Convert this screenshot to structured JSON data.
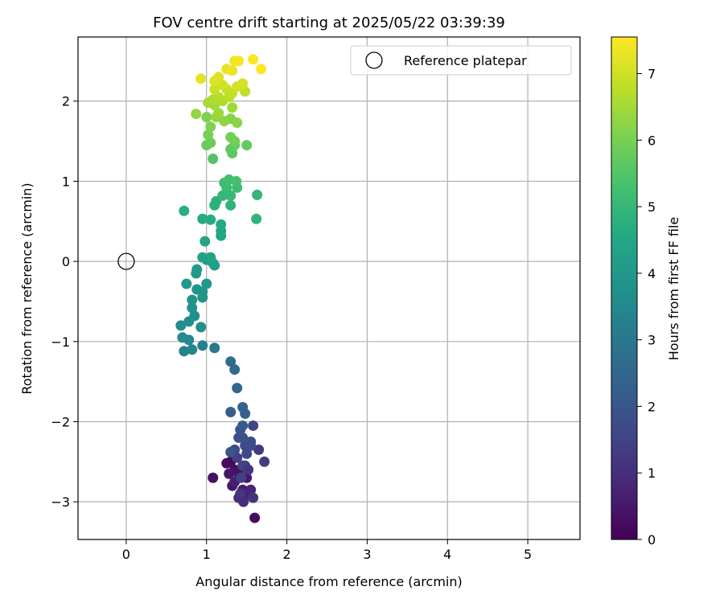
{
  "chart_data": {
    "type": "scatter",
    "title": "FOV centre drift starting at 2025/05/22 03:39:39",
    "xlabel": "Angular distance from reference (arcmin)",
    "ylabel": "Rotation from reference (arcmin)",
    "xlim": [
      -0.6,
      5.65
    ],
    "ylim": [
      -3.47,
      2.8
    ],
    "xticks": [
      0,
      1,
      2,
      3,
      4,
      5
    ],
    "yticks": [
      -3,
      -2,
      -1,
      0,
      1,
      2
    ],
    "grid": true,
    "legend": {
      "position": "top-right",
      "entries": [
        "Reference platepar"
      ]
    },
    "reference_point": {
      "x": 0,
      "y": 0,
      "marker": "open-circle",
      "color": "#000000"
    },
    "colorbar": {
      "label": "Hours from first FF file",
      "range": [
        0,
        7.55
      ],
      "ticks": [
        0,
        1,
        2,
        3,
        4,
        5,
        6,
        7
      ],
      "colormap": "viridis"
    },
    "points": [
      {
        "x": 1.3,
        "y": -2.5,
        "h": 0.1
      },
      {
        "x": 1.25,
        "y": -2.52,
        "h": 0.2
      },
      {
        "x": 1.35,
        "y": -2.6,
        "h": 0.3
      },
      {
        "x": 1.4,
        "y": -2.65,
        "h": 0.4
      },
      {
        "x": 1.32,
        "y": -2.8,
        "h": 0.5
      },
      {
        "x": 1.45,
        "y": -2.85,
        "h": 0.6
      },
      {
        "x": 1.5,
        "y": -2.9,
        "h": 0.7
      },
      {
        "x": 1.55,
        "y": -2.85,
        "h": 0.8
      },
      {
        "x": 1.4,
        "y": -2.95,
        "h": 0.9
      },
      {
        "x": 1.46,
        "y": -3.0,
        "h": 1.0
      },
      {
        "x": 1.6,
        "y": -3.2,
        "h": 0.25
      },
      {
        "x": 1.08,
        "y": -2.7,
        "h": 0.35
      },
      {
        "x": 1.28,
        "y": -2.65,
        "h": 0.45
      },
      {
        "x": 1.5,
        "y": -2.7,
        "h": 0.55
      },
      {
        "x": 1.35,
        "y": -2.75,
        "h": 0.65
      },
      {
        "x": 1.58,
        "y": -2.95,
        "h": 1.1
      },
      {
        "x": 1.42,
        "y": -2.9,
        "h": 1.2
      },
      {
        "x": 1.48,
        "y": -2.55,
        "h": 1.3
      },
      {
        "x": 1.38,
        "y": -2.45,
        "h": 1.4
      },
      {
        "x": 1.65,
        "y": -2.35,
        "h": 1.25
      },
      {
        "x": 1.72,
        "y": -2.5,
        "h": 1.35
      },
      {
        "x": 1.45,
        "y": -2.55,
        "h": 1.5
      },
      {
        "x": 1.52,
        "y": -2.6,
        "h": 1.15
      },
      {
        "x": 1.43,
        "y": -2.7,
        "h": 1.45
      },
      {
        "x": 1.35,
        "y": -2.35,
        "h": 1.6
      },
      {
        "x": 1.48,
        "y": -2.3,
        "h": 1.7
      },
      {
        "x": 1.55,
        "y": -2.25,
        "h": 1.8
      },
      {
        "x": 1.4,
        "y": -2.2,
        "h": 1.9
      },
      {
        "x": 1.5,
        "y": -2.4,
        "h": 1.65
      },
      {
        "x": 1.42,
        "y": -2.1,
        "h": 2.0
      },
      {
        "x": 1.55,
        "y": -2.3,
        "h": 1.75
      },
      {
        "x": 1.45,
        "y": -2.2,
        "h": 1.85
      },
      {
        "x": 1.3,
        "y": -2.38,
        "h": 1.95
      },
      {
        "x": 1.45,
        "y": -2.05,
        "h": 2.1
      },
      {
        "x": 1.58,
        "y": -2.05,
        "h": 1.55
      },
      {
        "x": 1.3,
        "y": -1.88,
        "h": 2.2
      },
      {
        "x": 1.45,
        "y": -1.82,
        "h": 2.3
      },
      {
        "x": 1.48,
        "y": -1.9,
        "h": 2.4
      },
      {
        "x": 1.38,
        "y": -1.58,
        "h": 2.5
      },
      {
        "x": 1.35,
        "y": -1.35,
        "h": 2.6
      },
      {
        "x": 1.3,
        "y": -1.25,
        "h": 2.7
      },
      {
        "x": 1.1,
        "y": -1.08,
        "h": 3.0
      },
      {
        "x": 0.95,
        "y": -1.05,
        "h": 3.2
      },
      {
        "x": 0.72,
        "y": -1.12,
        "h": 3.3
      },
      {
        "x": 0.82,
        "y": -1.1,
        "h": 3.4
      },
      {
        "x": 0.78,
        "y": -0.98,
        "h": 3.5
      },
      {
        "x": 0.7,
        "y": -0.95,
        "h": 3.55
      },
      {
        "x": 0.68,
        "y": -0.8,
        "h": 3.6
      },
      {
        "x": 0.78,
        "y": -0.75,
        "h": 3.65
      },
      {
        "x": 0.93,
        "y": -0.82,
        "h": 3.7
      },
      {
        "x": 0.85,
        "y": -0.68,
        "h": 3.75
      },
      {
        "x": 0.82,
        "y": -0.58,
        "h": 3.8
      },
      {
        "x": 0.82,
        "y": -0.48,
        "h": 3.85
      },
      {
        "x": 0.95,
        "y": -0.45,
        "h": 3.9
      },
      {
        "x": 0.95,
        "y": -0.38,
        "h": 3.92
      },
      {
        "x": 0.88,
        "y": -0.35,
        "h": 3.95
      },
      {
        "x": 0.75,
        "y": -0.28,
        "h": 4.0
      },
      {
        "x": 1.0,
        "y": -0.28,
        "h": 4.02
      },
      {
        "x": 0.87,
        "y": -0.15,
        "h": 4.05
      },
      {
        "x": 0.88,
        "y": -0.1,
        "h": 4.1
      },
      {
        "x": 1.0,
        "y": 0.02,
        "h": 4.15
      },
      {
        "x": 1.08,
        "y": -0.02,
        "h": 4.2
      },
      {
        "x": 1.1,
        "y": -0.05,
        "h": 4.25
      },
      {
        "x": 0.95,
        "y": 0.05,
        "h": 4.3
      },
      {
        "x": 1.05,
        "y": 0.05,
        "h": 4.35
      },
      {
        "x": 0.98,
        "y": 0.25,
        "h": 4.4
      },
      {
        "x": 1.18,
        "y": 0.32,
        "h": 4.45
      },
      {
        "x": 1.18,
        "y": 0.38,
        "h": 4.5
      },
      {
        "x": 1.18,
        "y": 0.46,
        "h": 4.55
      },
      {
        "x": 0.95,
        "y": 0.53,
        "h": 4.6
      },
      {
        "x": 1.05,
        "y": 0.52,
        "h": 4.65
      },
      {
        "x": 0.72,
        "y": 0.63,
        "h": 4.7
      },
      {
        "x": 1.1,
        "y": 0.7,
        "h": 4.75
      },
      {
        "x": 1.12,
        "y": 0.75,
        "h": 4.8
      },
      {
        "x": 1.3,
        "y": 0.7,
        "h": 4.85
      },
      {
        "x": 1.62,
        "y": 0.53,
        "h": 4.9
      },
      {
        "x": 1.63,
        "y": 0.83,
        "h": 4.95
      },
      {
        "x": 1.2,
        "y": 0.82,
        "h": 5.0
      },
      {
        "x": 1.3,
        "y": 0.82,
        "h": 5.05
      },
      {
        "x": 1.25,
        "y": 0.92,
        "h": 5.1
      },
      {
        "x": 1.22,
        "y": 0.98,
        "h": 5.15
      },
      {
        "x": 1.38,
        "y": 0.92,
        "h": 5.2
      },
      {
        "x": 1.28,
        "y": 1.02,
        "h": 5.25
      },
      {
        "x": 1.37,
        "y": 1.0,
        "h": 5.3
      },
      {
        "x": 1.08,
        "y": 1.28,
        "h": 5.5
      },
      {
        "x": 1.32,
        "y": 1.35,
        "h": 5.6
      },
      {
        "x": 1.3,
        "y": 1.4,
        "h": 5.65
      },
      {
        "x": 1.35,
        "y": 1.45,
        "h": 5.7
      },
      {
        "x": 1.5,
        "y": 1.45,
        "h": 5.75
      },
      {
        "x": 1.0,
        "y": 1.45,
        "h": 5.8
      },
      {
        "x": 1.05,
        "y": 1.48,
        "h": 5.85
      },
      {
        "x": 1.35,
        "y": 1.5,
        "h": 5.9
      },
      {
        "x": 1.3,
        "y": 1.55,
        "h": 5.95
      },
      {
        "x": 1.02,
        "y": 1.58,
        "h": 6.0
      },
      {
        "x": 1.0,
        "y": 1.8,
        "h": 6.05
      },
      {
        "x": 1.05,
        "y": 1.68,
        "h": 6.1
      },
      {
        "x": 1.3,
        "y": 1.78,
        "h": 6.15
      },
      {
        "x": 1.38,
        "y": 1.73,
        "h": 6.2
      },
      {
        "x": 1.22,
        "y": 1.75,
        "h": 6.25
      },
      {
        "x": 0.87,
        "y": 1.84,
        "h": 6.3
      },
      {
        "x": 1.12,
        "y": 1.8,
        "h": 6.35
      },
      {
        "x": 1.15,
        "y": 1.85,
        "h": 6.4
      },
      {
        "x": 1.32,
        "y": 1.92,
        "h": 6.45
      },
      {
        "x": 1.1,
        "y": 1.95,
        "h": 6.5
      },
      {
        "x": 1.02,
        "y": 1.98,
        "h": 6.55
      },
      {
        "x": 1.08,
        "y": 2.02,
        "h": 6.6
      },
      {
        "x": 1.2,
        "y": 2.0,
        "h": 6.65
      },
      {
        "x": 1.15,
        "y": 2.05,
        "h": 6.7
      },
      {
        "x": 1.28,
        "y": 2.05,
        "h": 6.75
      },
      {
        "x": 1.48,
        "y": 2.12,
        "h": 6.8
      },
      {
        "x": 1.32,
        "y": 2.1,
        "h": 6.85
      },
      {
        "x": 1.25,
        "y": 2.15,
        "h": 6.9
      },
      {
        "x": 1.1,
        "y": 2.15,
        "h": 6.95
      },
      {
        "x": 1.2,
        "y": 2.2,
        "h": 7.0
      },
      {
        "x": 1.38,
        "y": 2.18,
        "h": 7.05
      },
      {
        "x": 1.45,
        "y": 2.22,
        "h": 7.1
      },
      {
        "x": 1.1,
        "y": 2.25,
        "h": 7.15
      },
      {
        "x": 1.15,
        "y": 2.3,
        "h": 7.2
      },
      {
        "x": 0.93,
        "y": 2.28,
        "h": 7.25
      },
      {
        "x": 1.25,
        "y": 2.4,
        "h": 7.3
      },
      {
        "x": 1.32,
        "y": 2.38,
        "h": 7.35
      },
      {
        "x": 1.35,
        "y": 2.5,
        "h": 7.4
      },
      {
        "x": 1.4,
        "y": 2.5,
        "h": 7.45
      },
      {
        "x": 1.58,
        "y": 2.52,
        "h": 7.5
      },
      {
        "x": 1.68,
        "y": 2.4,
        "h": 7.55
      }
    ]
  }
}
